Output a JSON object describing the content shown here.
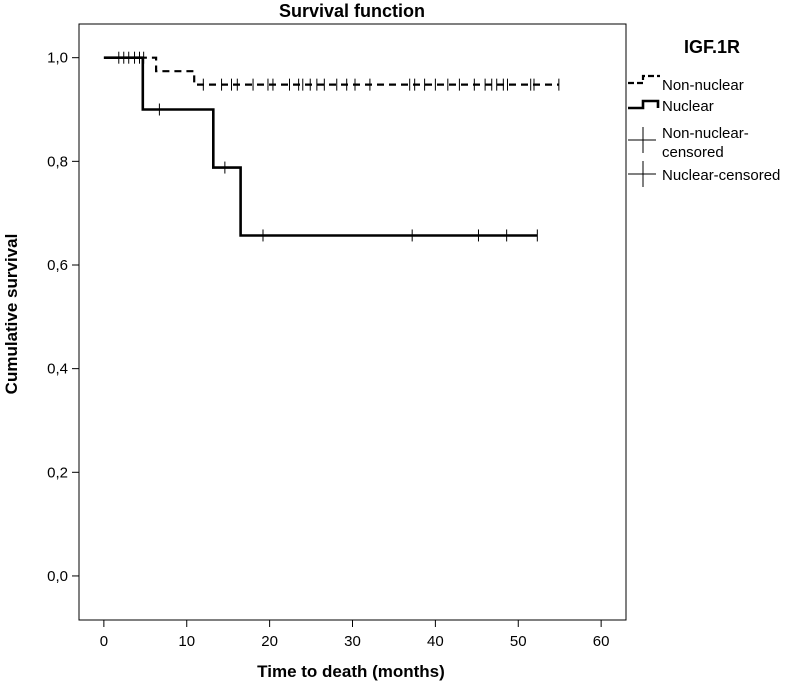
{
  "chart_data": {
    "type": "line",
    "subtype": "kaplan-meier",
    "title": "Survival function",
    "xlabel": "Time to death (months)",
    "ylabel": "Cumulative survival",
    "xlim": [
      -3,
      63
    ],
    "ylim": [
      -0.085,
      1.065
    ],
    "xticks": [
      0,
      10,
      20,
      30,
      40,
      50,
      60
    ],
    "xtick_labels": [
      "0",
      "10",
      "20",
      "30",
      "40",
      "50",
      "60"
    ],
    "yticks": [
      0.0,
      0.2,
      0.4,
      0.6,
      0.8,
      1.0
    ],
    "ytick_labels": [
      "0,0",
      "0,2",
      "0,4",
      "0,6",
      "0,8",
      "1,0"
    ],
    "legend_title": "IGF.1R",
    "legend_position": "right",
    "series": [
      {
        "name": "Non-nuclear",
        "style": "dashed",
        "steps": [
          [
            0,
            1.0
          ],
          [
            6.3,
            1.0
          ],
          [
            6.3,
            0.974
          ],
          [
            10.9,
            0.974
          ],
          [
            10.9,
            0.948
          ],
          [
            54.9,
            0.948
          ]
        ],
        "censored_name": "Non-nuclear-censored",
        "censored": [
          [
            1.8,
            1.0
          ],
          [
            2.4,
            1.0
          ],
          [
            3.0,
            1.0
          ],
          [
            3.7,
            1.0
          ],
          [
            4.3,
            1.0
          ],
          [
            4.8,
            1.0
          ],
          [
            12.0,
            0.948
          ],
          [
            14.2,
            0.948
          ],
          [
            15.4,
            0.948
          ],
          [
            16.1,
            0.948
          ],
          [
            18.0,
            0.948
          ],
          [
            19.8,
            0.948
          ],
          [
            20.4,
            0.948
          ],
          [
            22.4,
            0.948
          ],
          [
            23.5,
            0.948
          ],
          [
            24.0,
            0.948
          ],
          [
            24.9,
            0.948
          ],
          [
            25.7,
            0.948
          ],
          [
            26.6,
            0.948
          ],
          [
            28.1,
            0.948
          ],
          [
            29.3,
            0.948
          ],
          [
            30.3,
            0.948
          ],
          [
            32.1,
            0.948
          ],
          [
            36.9,
            0.948
          ],
          [
            37.5,
            0.948
          ],
          [
            38.7,
            0.948
          ],
          [
            40.0,
            0.948
          ],
          [
            41.5,
            0.948
          ],
          [
            42.9,
            0.948
          ],
          [
            44.7,
            0.948
          ],
          [
            46.0,
            0.948
          ],
          [
            46.8,
            0.948
          ],
          [
            47.4,
            0.948
          ],
          [
            48.2,
            0.948
          ],
          [
            48.7,
            0.948
          ],
          [
            51.5,
            0.948
          ],
          [
            51.9,
            0.948
          ],
          [
            54.9,
            0.948
          ]
        ]
      },
      {
        "name": "Nuclear",
        "style": "solid",
        "steps": [
          [
            0,
            1.0
          ],
          [
            4.7,
            1.0
          ],
          [
            4.7,
            0.9
          ],
          [
            13.2,
            0.9
          ],
          [
            13.2,
            0.788
          ],
          [
            16.5,
            0.788
          ],
          [
            16.5,
            0.657
          ],
          [
            52.3,
            0.657
          ]
        ],
        "censored_name": "Nuclear-censored",
        "censored": [
          [
            6.7,
            0.9
          ],
          [
            14.6,
            0.788
          ],
          [
            19.2,
            0.657
          ],
          [
            37.2,
            0.657
          ],
          [
            45.2,
            0.657
          ],
          [
            48.6,
            0.657
          ],
          [
            52.3,
            0.657
          ]
        ]
      }
    ]
  }
}
